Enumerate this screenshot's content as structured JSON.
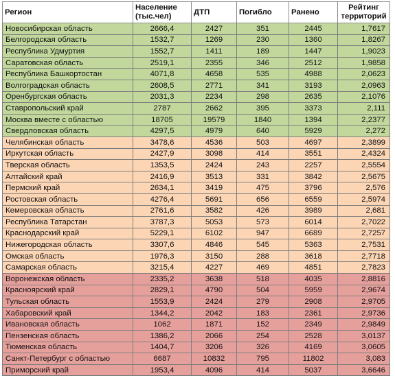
{
  "colors": {
    "green": "#c2d79b",
    "peach": "#fcd5b5",
    "red": "#e6a09c"
  },
  "headers": {
    "region": "Регион",
    "population": "Население (тыс.чел)",
    "accidents": "ДТП",
    "killed": "Погибло",
    "injured": "Ранено",
    "rating": "Рейтинг территорий"
  },
  "rows": [
    {
      "region": "Новосибирская область",
      "population": "2666,4",
      "accidents": "2427",
      "killed": "351",
      "injured": "2445",
      "rating": "1,7617",
      "group": "green"
    },
    {
      "region": "Белгородская область",
      "population": "1532,7",
      "accidents": "1269",
      "killed": "230",
      "injured": "1360",
      "rating": "1,8267",
      "group": "green"
    },
    {
      "region": "Республика Удмуртия",
      "population": "1552,7",
      "accidents": "1411",
      "killed": "189",
      "injured": "1447",
      "rating": "1,9023",
      "group": "green"
    },
    {
      "region": "Саратовская область",
      "population": "2519,1",
      "accidents": "2355",
      "killed": "346",
      "injured": "2512",
      "rating": "1,9858",
      "group": "green"
    },
    {
      "region": "Республика Башкортостан",
      "population": "4071,8",
      "accidents": "4658",
      "killed": "535",
      "injured": "4988",
      "rating": "2,0623",
      "group": "green"
    },
    {
      "region": "Волгоградская область",
      "population": "2608,5",
      "accidents": "2771",
      "killed": "341",
      "injured": "3193",
      "rating": "2,0963",
      "group": "green"
    },
    {
      "region": "Оренбургская область",
      "population": "2031,3",
      "accidents": "2234",
      "killed": "298",
      "injured": "2635",
      "rating": "2,1076",
      "group": "green"
    },
    {
      "region": "Ставропольский край",
      "population": "2787",
      "accidents": "2662",
      "killed": "395",
      "injured": "3373",
      "rating": "2,111",
      "group": "green"
    },
    {
      "region": "Москва вместе с областью",
      "population": "18705",
      "accidents": "19579",
      "killed": "1840",
      "injured": "1394",
      "rating": "2,2377",
      "group": "green"
    },
    {
      "region": "Свердловская область",
      "population": "4297,5",
      "accidents": "4979",
      "killed": "640",
      "injured": "5929",
      "rating": "2,272",
      "group": "green"
    },
    {
      "region": "Челябинская область",
      "population": "3478,6",
      "accidents": "4536",
      "killed": "503",
      "injured": "4697",
      "rating": "2,3899",
      "group": "peach"
    },
    {
      "region": "Иркутская область",
      "population": "2427,9",
      "accidents": "3098",
      "killed": "414",
      "injured": "3551",
      "rating": "2,4324",
      "group": "peach"
    },
    {
      "region": "Тверская область",
      "population": "1353,5",
      "accidents": "2424",
      "killed": "243",
      "injured": "2257",
      "rating": "2,5554",
      "group": "peach"
    },
    {
      "region": "Алтайский край",
      "population": "2416,9",
      "accidents": "3513",
      "killed": "331",
      "injured": "3842",
      "rating": "2,5675",
      "group": "peach"
    },
    {
      "region": "Пермский край",
      "population": "2634,1",
      "accidents": "3419",
      "killed": "475",
      "injured": "3796",
      "rating": "2,576",
      "group": "peach"
    },
    {
      "region": "Ростовская область",
      "population": "4276,4",
      "accidents": "5691",
      "killed": "656",
      "injured": "6559",
      "rating": "2,5974",
      "group": "peach"
    },
    {
      "region": "Кемеровская область",
      "population": "2761,6",
      "accidents": "3582",
      "killed": "426",
      "injured": "3989",
      "rating": "2,681",
      "group": "peach"
    },
    {
      "region": "Республика Татарстан",
      "population": "3787,3",
      "accidents": "5053",
      "killed": "573",
      "injured": "6014",
      "rating": "2,7022",
      "group": "peach"
    },
    {
      "region": "Краснодарский край",
      "population": "5229,1",
      "accidents": "6102",
      "killed": "947",
      "injured": "6689",
      "rating": "2,7257",
      "group": "peach"
    },
    {
      "region": "Нижегородская область",
      "population": "3307,6",
      "accidents": "4846",
      "killed": "545",
      "injured": "5363",
      "rating": "2,7531",
      "group": "peach"
    },
    {
      "region": "Омская область",
      "population": "1976,3",
      "accidents": "3150",
      "killed": "288",
      "injured": "3618",
      "rating": "2,7718",
      "group": "peach"
    },
    {
      "region": "Самарская область",
      "population": "3215,4",
      "accidents": "4227",
      "killed": "469",
      "injured": "4851",
      "rating": "2,7823",
      "group": "peach"
    },
    {
      "region": "Воронежская область",
      "population": "2335,2",
      "accidents": "3638",
      "killed": "518",
      "injured": "4035",
      "rating": "2,8816",
      "group": "red"
    },
    {
      "region": "Красноярский край",
      "population": "2829,1",
      "accidents": "4790",
      "killed": "504",
      "injured": "5959",
      "rating": "2,9674",
      "group": "red"
    },
    {
      "region": "Тульская область",
      "population": "1553,9",
      "accidents": "2424",
      "killed": "279",
      "injured": "2908",
      "rating": "2,9705",
      "group": "red"
    },
    {
      "region": "Хабаровский край",
      "population": "1344,2",
      "accidents": "2042",
      "killed": "183",
      "injured": "2361",
      "rating": "2,9736",
      "group": "red"
    },
    {
      "region": "Ивановская область",
      "population": "1062",
      "accidents": "1871",
      "killed": "152",
      "injured": "2349",
      "rating": "2,9849",
      "group": "red"
    },
    {
      "region": "Пензенская область",
      "population": "1386,2",
      "accidents": "2066",
      "killed": "254",
      "injured": "2528",
      "rating": "3,0137",
      "group": "red"
    },
    {
      "region": "Тюменская область",
      "population": "1404,7",
      "accidents": "3206",
      "killed": "326",
      "injured": "4169",
      "rating": "3,0605",
      "group": "red"
    },
    {
      "region": "Санкт-Петербург с областью",
      "population": "6687",
      "accidents": "10832",
      "killed": "795",
      "injured": "11802",
      "rating": "3,083",
      "group": "red"
    },
    {
      "region": "Приморский край",
      "population": "1953,4",
      "accidents": "4096",
      "killed": "414",
      "injured": "5037",
      "rating": "3,6646",
      "group": "red"
    }
  ]
}
